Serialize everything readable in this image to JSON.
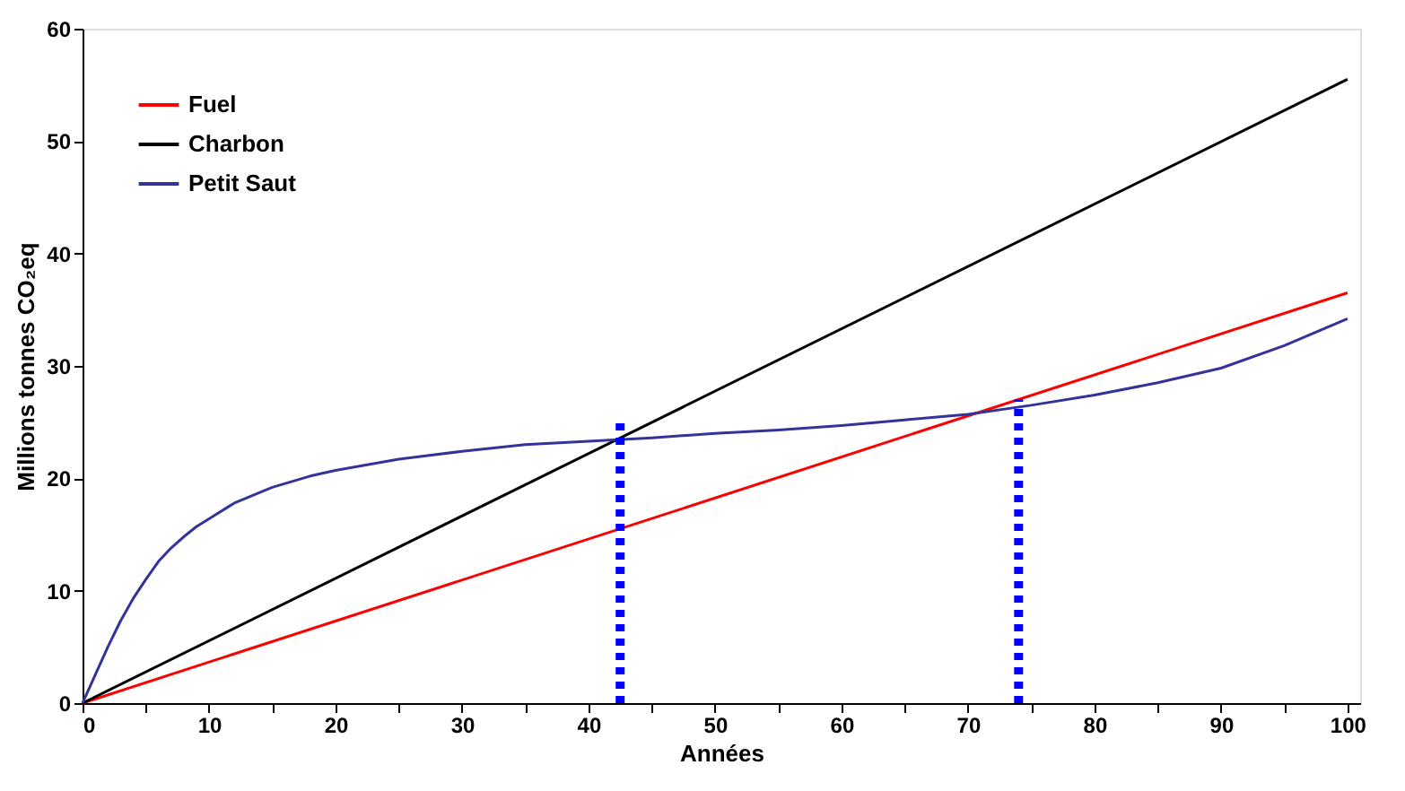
{
  "chart_data": {
    "type": "line",
    "xlabel": "Années",
    "ylabel": "Millions tonnes CO₂eq",
    "xlim": [
      0,
      101
    ],
    "ylim": [
      0,
      60
    ],
    "xticks": [
      0,
      {
        "value": 5,
        "label": null
      },
      10,
      {
        "value": 15,
        "label": null
      },
      20,
      {
        "value": 25,
        "label": null
      },
      30,
      {
        "value": 35,
        "label": null
      },
      40,
      {
        "value": 45,
        "label": null
      },
      50,
      {
        "value": 55,
        "label": null
      },
      60,
      {
        "value": 65,
        "label": null
      },
      70,
      {
        "value": 75,
        "label": null
      },
      80,
      {
        "value": 85,
        "label": null
      },
      90,
      {
        "value": 95,
        "label": null
      },
      100
    ],
    "yticks": [
      0,
      10,
      20,
      30,
      40,
      50,
      60
    ],
    "grid": false,
    "legend": "top left",
    "marker": "none",
    "series": [
      {
        "name": "Fuel",
        "color": "#ff0000",
        "x": [
          0,
          100
        ],
        "values": [
          0,
          36.5
        ]
      },
      {
        "name": "Charbon",
        "color": "#000000",
        "x": [
          0,
          100
        ],
        "values": [
          0,
          55.5
        ]
      },
      {
        "name": "Petit Saut",
        "color": "#333399",
        "x": [
          0,
          1,
          2,
          3,
          4,
          5,
          6,
          7,
          8,
          9,
          10,
          12,
          15,
          18,
          20,
          25,
          30,
          35,
          40,
          45,
          50,
          55,
          60,
          65,
          70,
          75,
          80,
          85,
          90,
          95,
          100
        ],
        "values": [
          0,
          2.5,
          5,
          7.3,
          9.3,
          11,
          12.6,
          13.8,
          14.8,
          15.7,
          16.4,
          17.8,
          19.2,
          20.2,
          20.7,
          21.7,
          22.4,
          23,
          23.3,
          23.6,
          24,
          24.3,
          24.7,
          25.2,
          25.7,
          26.5,
          27.4,
          28.5,
          29.8,
          31.8,
          34.2
        ]
      },
      {
        "color": "#0000ff",
        "line_style": "dotted",
        "x": [
          42.5,
          42.5
        ],
        "values": [
          0,
          25
        ]
      },
      {
        "color": "#0000ff",
        "line_style": "dotted",
        "x": [
          74,
          74
        ],
        "values": [
          0,
          27
        ]
      }
    ]
  }
}
